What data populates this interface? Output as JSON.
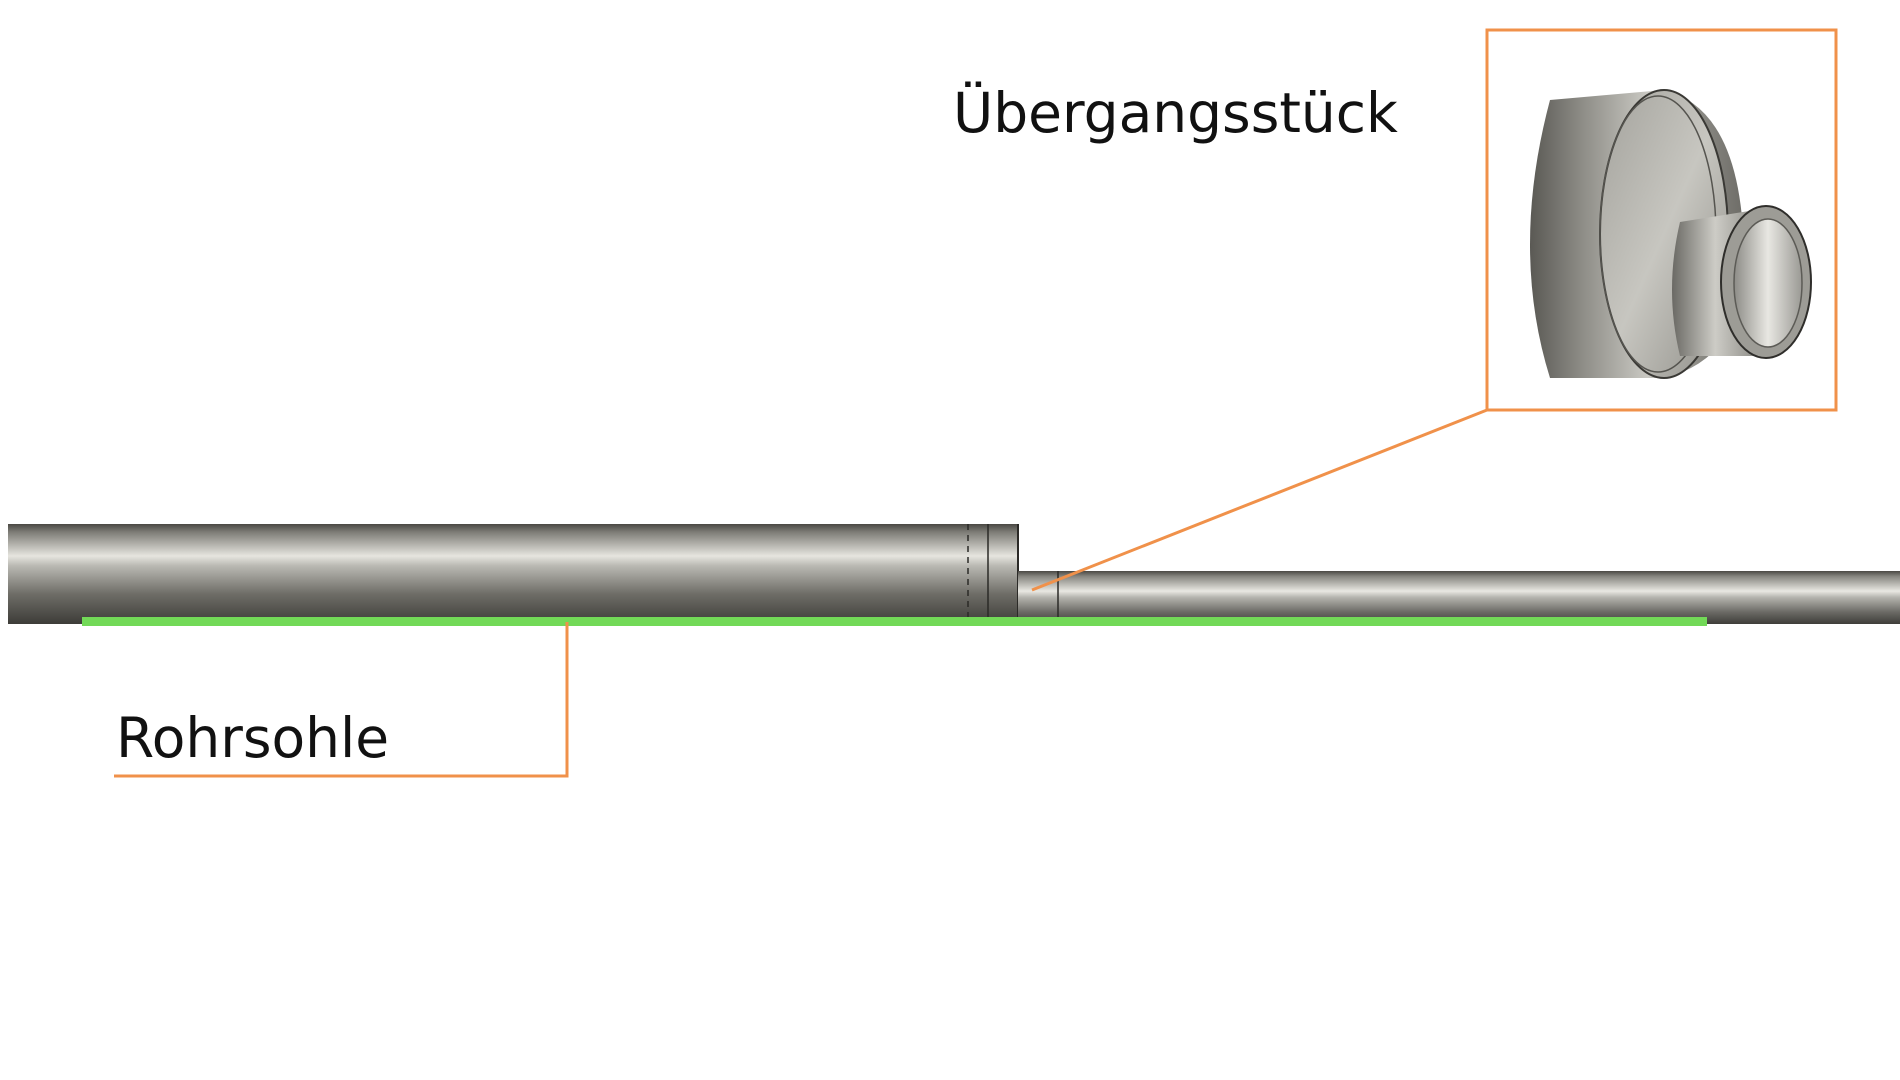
{
  "labels": {
    "transition_piece": "Übergangsstück",
    "pipe_invert": "Rohrsohle"
  },
  "colors": {
    "callout": "#f0914a",
    "invert_line": "#72d957",
    "pipe_dark": "#5b5a55",
    "pipe_mid": "#8b8a84",
    "pipe_light": "#e4e3dd",
    "background": "#ffffff"
  }
}
